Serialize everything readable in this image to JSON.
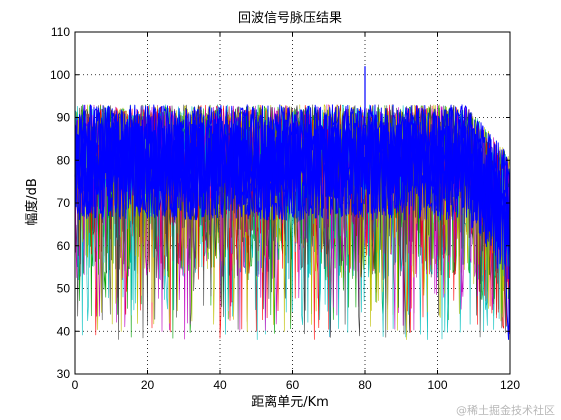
{
  "chart_data": {
    "type": "line",
    "title": "回波信号脉压结果",
    "xlabel": "距离单元/Km",
    "ylabel": "幅度/dB",
    "xlim": [
      0,
      120
    ],
    "ylim": [
      30,
      110
    ],
    "xticks": [
      0,
      20,
      40,
      60,
      80,
      100,
      120
    ],
    "yticks": [
      30,
      40,
      50,
      60,
      70,
      80,
      90,
      100,
      110
    ],
    "grid": true,
    "grid_style": "dotted",
    "legend": "none",
    "series_colors": [
      "#0000ff",
      "#00a000",
      "#ff0000",
      "#00bfbf",
      "#bf00bf",
      "#bfbf00",
      "#404040"
    ],
    "description": {
      "plateau_mean_db": 80,
      "plateau_upper_db": 93,
      "plateau_lower_db": 62,
      "min_db": 38,
      "rolloff_start_km": 108,
      "end_km": 120,
      "end_level_db": 57
    },
    "peaks": [
      {
        "x": 80,
        "y": 102
      }
    ]
  },
  "watermark": "@稀土掘金技术社区"
}
